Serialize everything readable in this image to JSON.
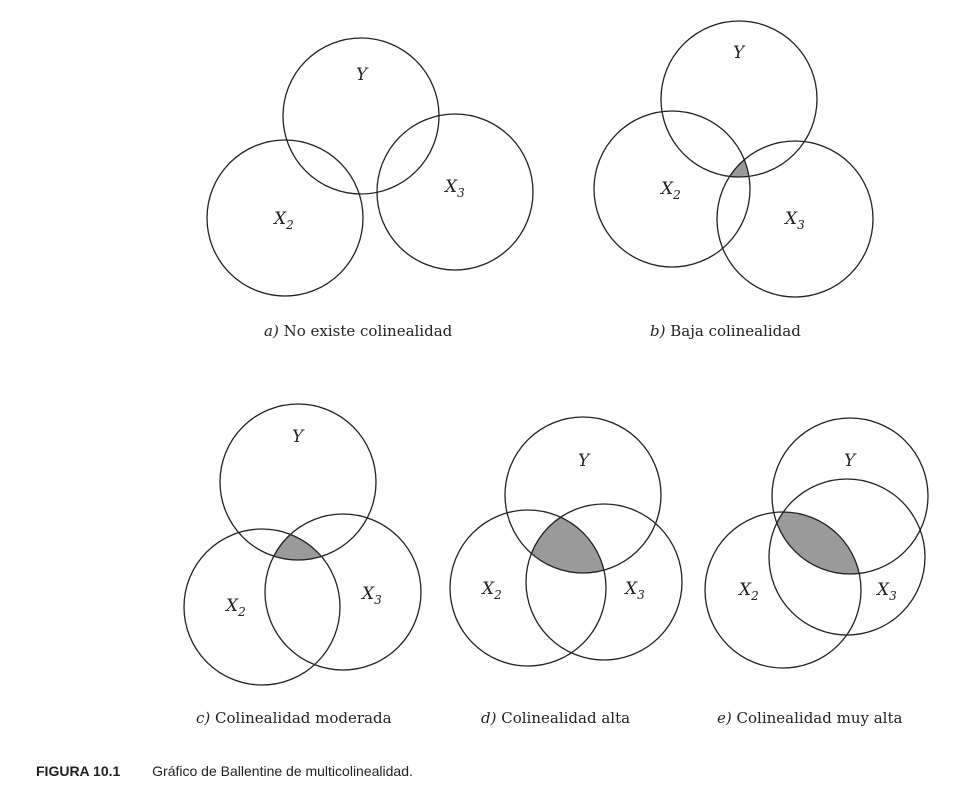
{
  "panels": [
    {
      "id": "a",
      "letter": "a)",
      "caption": "No existe colinealidad",
      "labels": {
        "y": "Y",
        "x2": "X",
        "x2_sub": "2",
        "x3": "X",
        "x3_sub": "3"
      }
    },
    {
      "id": "b",
      "letter": "b)",
      "caption": "Baja colinealidad",
      "labels": {
        "y": "Y",
        "x2": "X",
        "x2_sub": "2",
        "x3": "X",
        "x3_sub": "3"
      }
    },
    {
      "id": "c",
      "letter": "c)",
      "caption": "Colinealidad moderada",
      "labels": {
        "y": "Y",
        "x2": "X",
        "x2_sub": "2",
        "x3": "X",
        "x3_sub": "3"
      }
    },
    {
      "id": "d",
      "letter": "d)",
      "caption": "Colinealidad alta",
      "labels": {
        "y": "Y",
        "x2": "X",
        "x2_sub": "2",
        "x3": "X",
        "x3_sub": "3"
      }
    },
    {
      "id": "e",
      "letter": "e)",
      "caption": "Colinealidad muy alta",
      "labels": {
        "y": "Y",
        "x2": "X",
        "x2_sub": "2",
        "x3": "X",
        "x3_sub": "3"
      }
    }
  ],
  "figure": {
    "label": "FIGURA 10.1",
    "title": "Gráfico de Ballentine de multicolinealidad."
  },
  "colors": {
    "stroke": "#222222",
    "shade": "#9a9a9a"
  }
}
